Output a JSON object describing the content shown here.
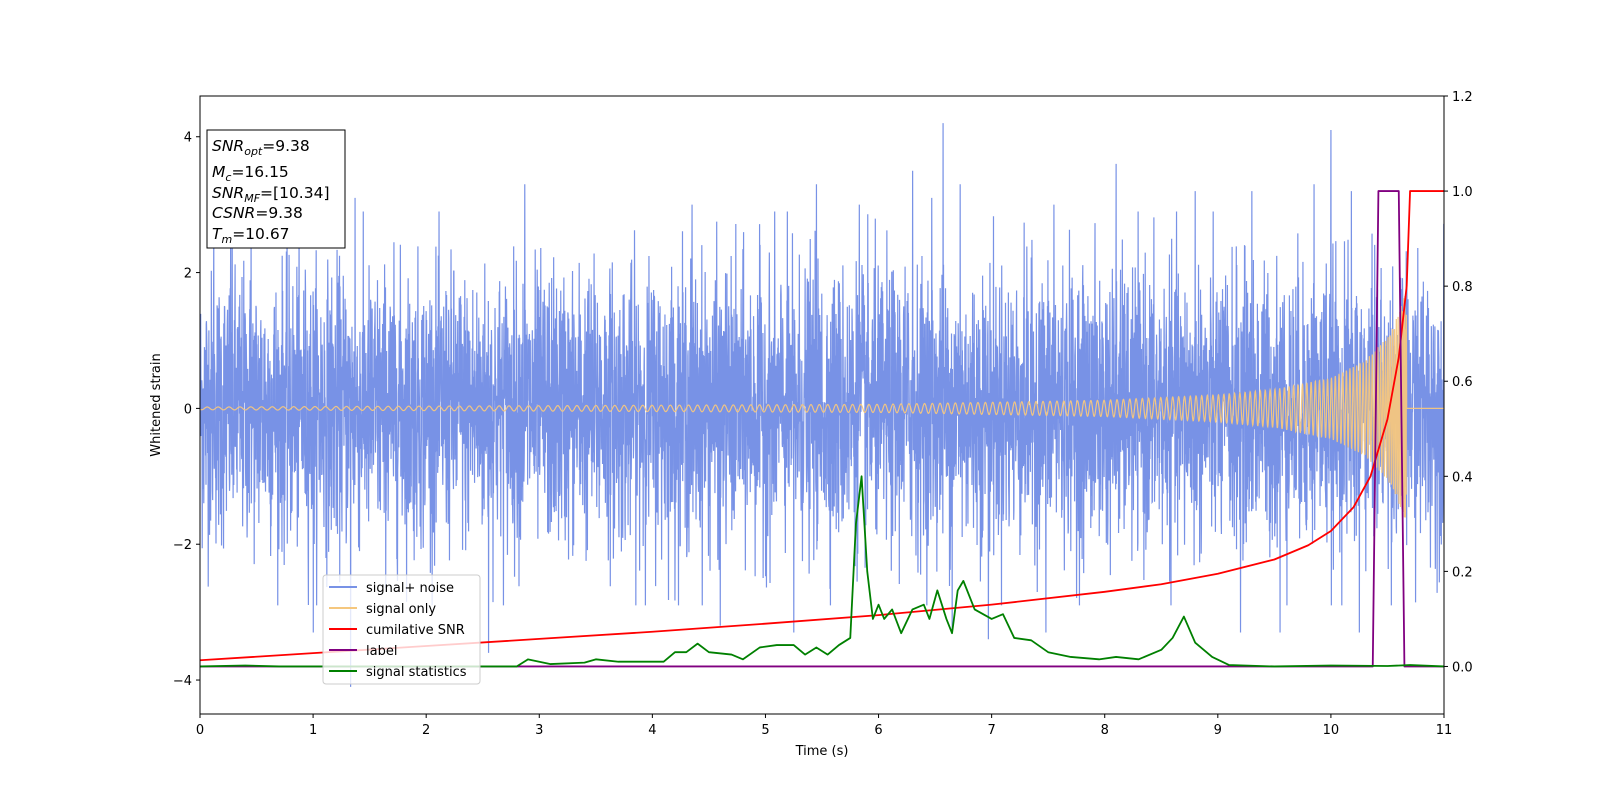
{
  "chart_data": {
    "type": "line",
    "xlabel": "Time (s)",
    "ylabel": "Whitened strain",
    "xlim": [
      0,
      11
    ],
    "ylim": [
      -4.5,
      4.6
    ],
    "y2lim": [
      -0.1,
      1.2
    ],
    "xticks": [
      0,
      1,
      2,
      3,
      4,
      5,
      6,
      7,
      8,
      9,
      10,
      11
    ],
    "yticks": [
      -4,
      -2,
      0,
      2,
      4
    ],
    "y2ticks": [
      "0.0",
      "0.2",
      "0.4",
      "0.6",
      "0.8",
      "1.0",
      "1.2"
    ],
    "y2ticks_values": [
      0.0,
      0.2,
      0.4,
      0.6,
      0.8,
      1.0,
      1.2
    ],
    "legend_position": "lower-left",
    "info_box": {
      "snr_opt_main": "SNR",
      "snr_opt_sub": "opt",
      "snr_opt_val": "=9.38",
      "mc_main": "M",
      "mc_sub": "c",
      "mc_val": "=16.15",
      "snr_mf_main": "SNR",
      "snr_mf_sub": "MF",
      "snr_mf_val": "=[10.34]",
      "csnr_main": "CSNR",
      "csnr_val": "=9.38",
      "tm_main": "T",
      "tm_sub": "m",
      "tm_val": "=10.67"
    },
    "series": [
      {
        "name": "signal+ noise",
        "color": "#7892e6",
        "axis": "left",
        "kind": "noise",
        "envelope_sigma": 1.0,
        "peak_points": [
          [
            0.12,
            2.6
          ],
          [
            0.27,
            3.0
          ],
          [
            0.45,
            2.8
          ],
          [
            1.0,
            -3.3
          ],
          [
            1.33,
            -4.1
          ],
          [
            1.37,
            3.1
          ],
          [
            2.55,
            -3.6
          ],
          [
            2.87,
            3.3
          ],
          [
            4.35,
            3.0
          ],
          [
            4.6,
            -3.2
          ],
          [
            5.25,
            -3.3
          ],
          [
            5.45,
            3.3
          ],
          [
            5.83,
            3.0
          ],
          [
            6.3,
            3.5
          ],
          [
            6.47,
            3.1
          ],
          [
            6.57,
            4.2
          ],
          [
            6.65,
            -3.3
          ],
          [
            6.72,
            3.3
          ],
          [
            6.97,
            -3.4
          ],
          [
            7.48,
            -3.3
          ],
          [
            7.55,
            3.0
          ],
          [
            8.1,
            3.6
          ],
          [
            8.8,
            3.2
          ],
          [
            9.2,
            -3.3
          ],
          [
            9.3,
            3.2
          ],
          [
            9.55,
            -3.3
          ],
          [
            9.85,
            3.3
          ],
          [
            10.0,
            4.1
          ],
          [
            10.18,
            3.2
          ],
          [
            10.25,
            -3.3
          ]
        ]
      },
      {
        "name": "signal only",
        "color": "#f5c77e",
        "axis": "left",
        "kind": "chirp",
        "start_time": 0.0,
        "merger_time": 10.67,
        "end_amplitude": 1.75,
        "pre_merger_envelope": [
          [
            0,
            0.02
          ],
          [
            6,
            0.06
          ],
          [
            8,
            0.12
          ],
          [
            9,
            0.2
          ],
          [
            9.5,
            0.28
          ],
          [
            10,
            0.45
          ],
          [
            10.3,
            0.7
          ],
          [
            10.5,
            1.05
          ],
          [
            10.6,
            1.4
          ],
          [
            10.67,
            1.75
          ]
        ]
      },
      {
        "name": "cumilative SNR",
        "color": "#ff0000",
        "axis": "right",
        "points": [
          [
            0,
            0.013
          ],
          [
            1,
            0.028
          ],
          [
            2,
            0.043
          ],
          [
            3,
            0.058
          ],
          [
            4,
            0.073
          ],
          [
            5,
            0.09
          ],
          [
            6,
            0.108
          ],
          [
            7,
            0.13
          ],
          [
            8,
            0.157
          ],
          [
            8.5,
            0.173
          ],
          [
            9,
            0.195
          ],
          [
            9.5,
            0.225
          ],
          [
            9.8,
            0.255
          ],
          [
            10.0,
            0.285
          ],
          [
            10.2,
            0.335
          ],
          [
            10.35,
            0.4
          ],
          [
            10.5,
            0.52
          ],
          [
            10.6,
            0.65
          ],
          [
            10.67,
            0.8
          ],
          [
            10.7,
            1.0
          ],
          [
            11.0,
            1.0
          ]
        ]
      },
      {
        "name": "label",
        "color": "#800080",
        "axis": "right",
        "points": [
          [
            0,
            0
          ],
          [
            10.37,
            0
          ],
          [
            10.42,
            1.0
          ],
          [
            10.6,
            1.0
          ],
          [
            10.65,
            0
          ],
          [
            11.0,
            0
          ]
        ]
      },
      {
        "name": "signal statistics",
        "color": "#008000",
        "axis": "right",
        "points": [
          [
            0,
            0.0
          ],
          [
            0.4,
            0.002
          ],
          [
            0.7,
            0.0
          ],
          [
            2.8,
            0.0
          ],
          [
            2.9,
            0.015
          ],
          [
            3.1,
            0.005
          ],
          [
            3.4,
            0.008
          ],
          [
            3.5,
            0.015
          ],
          [
            3.7,
            0.01
          ],
          [
            4.1,
            0.01
          ],
          [
            4.2,
            0.03
          ],
          [
            4.3,
            0.03
          ],
          [
            4.4,
            0.048
          ],
          [
            4.5,
            0.03
          ],
          [
            4.7,
            0.025
          ],
          [
            4.8,
            0.015
          ],
          [
            4.95,
            0.04
          ],
          [
            5.1,
            0.045
          ],
          [
            5.25,
            0.045
          ],
          [
            5.35,
            0.025
          ],
          [
            5.45,
            0.04
          ],
          [
            5.55,
            0.025
          ],
          [
            5.65,
            0.045
          ],
          [
            5.75,
            0.06
          ],
          [
            5.8,
            0.3
          ],
          [
            5.85,
            0.4
          ],
          [
            5.9,
            0.2
          ],
          [
            5.95,
            0.1
          ],
          [
            6.0,
            0.13
          ],
          [
            6.05,
            0.1
          ],
          [
            6.12,
            0.12
          ],
          [
            6.2,
            0.07
          ],
          [
            6.3,
            0.12
          ],
          [
            6.4,
            0.13
          ],
          [
            6.45,
            0.1
          ],
          [
            6.52,
            0.16
          ],
          [
            6.6,
            0.1
          ],
          [
            6.65,
            0.07
          ],
          [
            6.7,
            0.16
          ],
          [
            6.75,
            0.18
          ],
          [
            6.85,
            0.12
          ],
          [
            7.0,
            0.1
          ],
          [
            7.1,
            0.11
          ],
          [
            7.2,
            0.06
          ],
          [
            7.35,
            0.055
          ],
          [
            7.5,
            0.03
          ],
          [
            7.7,
            0.02
          ],
          [
            7.95,
            0.015
          ],
          [
            8.1,
            0.02
          ],
          [
            8.3,
            0.015
          ],
          [
            8.5,
            0.035
          ],
          [
            8.6,
            0.06
          ],
          [
            8.7,
            0.105
          ],
          [
            8.8,
            0.05
          ],
          [
            8.95,
            0.02
          ],
          [
            9.1,
            0.003
          ],
          [
            9.5,
            0.0
          ],
          [
            10.0,
            0.002
          ],
          [
            10.5,
            0.001
          ],
          [
            10.7,
            0.003
          ],
          [
            11.0,
            0.0
          ]
        ]
      }
    ]
  }
}
